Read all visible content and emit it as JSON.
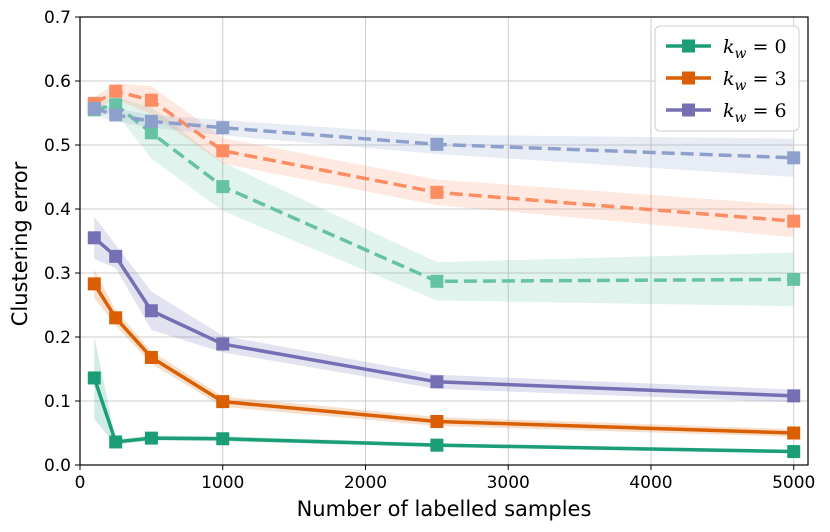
{
  "chart_data": {
    "type": "line",
    "title": "",
    "xlabel": "Number of labelled samples",
    "ylabel": "Clustering error",
    "xlim": [
      0,
      5100
    ],
    "ylim": [
      0,
      0.7
    ],
    "xticks": [
      0,
      1000,
      2000,
      3000,
      4000,
      5000
    ],
    "xtick_labels": [
      "0",
      "1000",
      "2000",
      "3000",
      "4000",
      "5000"
    ],
    "yticks": [
      0.0,
      0.1,
      0.2,
      0.3,
      0.4,
      0.5,
      0.6,
      0.7
    ],
    "ytick_labels": [
      "0.0",
      "0.1",
      "0.2",
      "0.3",
      "0.4",
      "0.5",
      "0.6",
      "0.7"
    ],
    "grid": true,
    "legend_position": "top-right",
    "x": [
      100,
      250,
      500,
      1000,
      2500,
      5000
    ],
    "legend": [
      {
        "base": "k",
        "sub": "w",
        "rest": " = 0",
        "color": "#1b9e77"
      },
      {
        "base": "k",
        "sub": "w",
        "rest": " = 3",
        "color": "#d95f02"
      },
      {
        "base": "k",
        "sub": "w",
        "rest": " = 6",
        "color": "#7570b3"
      }
    ],
    "series": [
      {
        "name": "k_w = 0 (solid)",
        "style": "solid",
        "color": "#1b9e77",
        "values": [
          0.136,
          0.036,
          0.042,
          0.041,
          0.031,
          0.021
        ],
        "band": [
          0.065,
          0.004,
          0.004,
          0.004,
          0.003,
          0.003
        ]
      },
      {
        "name": "k_w = 3 (solid)",
        "style": "solid",
        "color": "#d95f02",
        "values": [
          0.283,
          0.23,
          0.168,
          0.099,
          0.068,
          0.05
        ],
        "band": [
          0.022,
          0.012,
          0.01,
          0.008,
          0.007,
          0.006
        ]
      },
      {
        "name": "k_w = 6 (solid)",
        "style": "solid",
        "color": "#7570b3",
        "values": [
          0.355,
          0.326,
          0.241,
          0.189,
          0.13,
          0.108
        ],
        "band": [
          0.033,
          0.018,
          0.03,
          0.013,
          0.011,
          0.01
        ]
      },
      {
        "name": "k_w = 0 (dashed)",
        "style": "dashed",
        "color": "#66c2a5",
        "values": [
          0.555,
          0.563,
          0.519,
          0.435,
          0.287,
          0.29
        ],
        "band": [
          0.01,
          0.012,
          0.04,
          0.038,
          0.03,
          0.042
        ]
      },
      {
        "name": "k_w = 3 (dashed)",
        "style": "dashed",
        "color": "#fc8d62",
        "values": [
          0.565,
          0.584,
          0.57,
          0.491,
          0.426,
          0.381
        ],
        "band": [
          0.01,
          0.012,
          0.022,
          0.02,
          0.02,
          0.025
        ]
      },
      {
        "name": "k_w = 6 (dashed)",
        "style": "dashed",
        "color": "#8da0cb",
        "values": [
          0.557,
          0.547,
          0.537,
          0.527,
          0.501,
          0.48
        ],
        "band": [
          0.01,
          0.01,
          0.01,
          0.012,
          0.015,
          0.03
        ]
      }
    ]
  }
}
